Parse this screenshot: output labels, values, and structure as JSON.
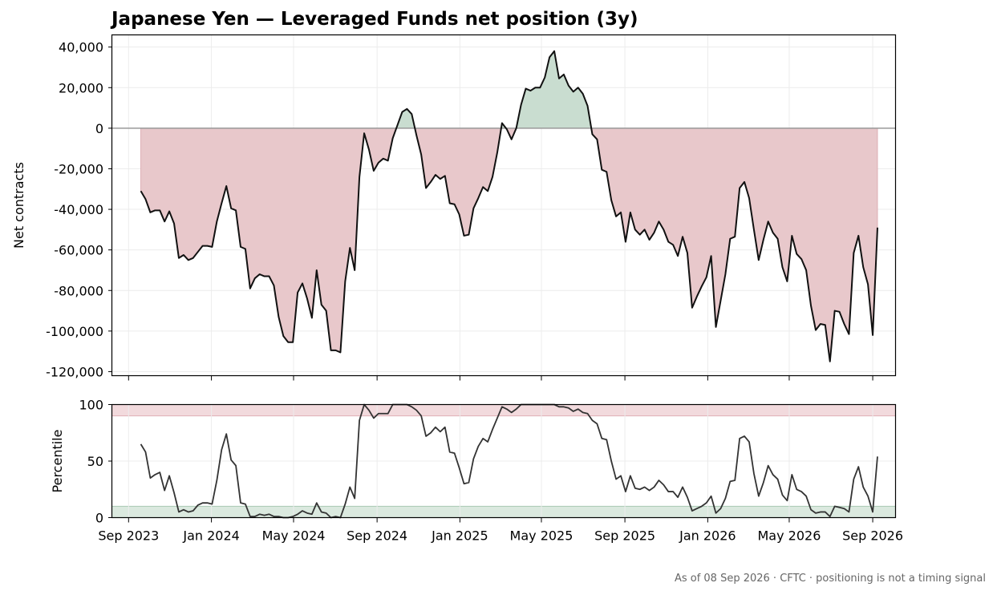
{
  "footer": "As of 08 Sep 2026 · CFTC · positioning is not a timing signal",
  "chart_data": [
    {
      "type": "area",
      "title": "Japanese Yen — Leveraged Funds net position (3y)",
      "xlabel": "",
      "ylabel": "Net contracts",
      "ylim": [
        -122000,
        46000
      ],
      "yticks": [
        40000,
        20000,
        0,
        -20000,
        -40000,
        -60000,
        -80000,
        -100000,
        -120000
      ],
      "ytick_labels": [
        "40,000",
        "20,000",
        "0",
        "-20,000",
        "-40,000",
        "-60,000",
        "-80,000",
        "-100,000",
        "-120,000"
      ],
      "grid": true,
      "fill_colors": {
        "negative": "#e8c8cb",
        "positive": "#c9ddd0"
      },
      "line_color": "#111111",
      "start_date": "2023-09-19",
      "frequency": "weekly",
      "values": [
        -31000,
        -35000,
        -41500,
        -40500,
        -40500,
        -46000,
        -41000,
        -47000,
        -64000,
        -62500,
        -65000,
        -64000,
        -61000,
        -58000,
        -58000,
        -58500,
        -46000,
        -37000,
        -28500,
        -39500,
        -40500,
        -58500,
        -59500,
        -79000,
        -74000,
        -72000,
        -73000,
        -73000,
        -77500,
        -93000,
        -102500,
        -105500,
        -105500,
        -81000,
        -76500,
        -84000,
        -93500,
        -70000,
        -87000,
        -90000,
        -109500,
        -109500,
        -110500,
        -75500,
        -59000,
        -70000,
        -24000,
        -2500,
        -10500,
        -21000,
        -17000,
        -15000,
        -16000,
        -5000,
        1500,
        8000,
        9500,
        7000,
        -3500,
        -13000,
        -29500,
        -26500,
        -23000,
        -25000,
        -23500,
        -37000,
        -37500,
        -42500,
        -53000,
        -52500,
        -39500,
        -34500,
        -29000,
        -31000,
        -24000,
        -12000,
        2500,
        -500,
        -5500,
        0,
        11500,
        19500,
        18500,
        20000,
        20000,
        25000,
        35000,
        38000,
        24500,
        26500,
        21000,
        18000,
        20000,
        17000,
        11000,
        -3000,
        -5500,
        -20500,
        -21500,
        -35500,
        -43500,
        -41500,
        -56000,
        -41500,
        -50000,
        -52500,
        -50000,
        -55000,
        -51500,
        -46000,
        -50000,
        -56000,
        -57500,
        -63000,
        -53500,
        -61500,
        -88500,
        -83000,
        -78000,
        -73500,
        -63000,
        -98000,
        -85000,
        -72000,
        -54500,
        -53500,
        -29500,
        -26500,
        -34500,
        -50000,
        -65000,
        -55000,
        -46000,
        -51500,
        -54500,
        -68500,
        -75500,
        -53000,
        -62000,
        -64500,
        -70000,
        -87500,
        -99500,
        -96500,
        -97000,
        -115000,
        -90000,
        -90500,
        -96500,
        -101500,
        -61500,
        -53000,
        -68500,
        -77000,
        -102000,
        -49000
      ]
    },
    {
      "type": "line",
      "title": "",
      "xlabel": "",
      "ylabel": "Percentile",
      "ylim": [
        0,
        100
      ],
      "yticks": [
        100,
        50,
        0
      ],
      "ytick_labels": [
        "100",
        "50",
        "0"
      ],
      "bands": [
        {
          "from": 90,
          "to": 100,
          "color": "#f2dadd"
        },
        {
          "from": 0,
          "to": 10,
          "color": "#dbe9df"
        }
      ],
      "line_color": "#333333",
      "start_date": "2023-09-19",
      "frequency": "weekly",
      "values": [
        65,
        58,
        35,
        38,
        40,
        24,
        37,
        22,
        5,
        7,
        5,
        6,
        11,
        13,
        13,
        12,
        33,
        60,
        74,
        51,
        46,
        13,
        12,
        1,
        1,
        3,
        2,
        3,
        1,
        1,
        0,
        0,
        1,
        3,
        6,
        4,
        3,
        13,
        5,
        4,
        0,
        1,
        0,
        12,
        27,
        17,
        86,
        100,
        95,
        88,
        92,
        92,
        92,
        100,
        100,
        100,
        100,
        98,
        95,
        90,
        72,
        75,
        80,
        76,
        80,
        58,
        57,
        44,
        30,
        31,
        52,
        63,
        70,
        67,
        78,
        88,
        98,
        96,
        93,
        96,
        100,
        100,
        100,
        100,
        100,
        100,
        100,
        100,
        98,
        98,
        97,
        94,
        96,
        93,
        92,
        86,
        83,
        70,
        69,
        50,
        34,
        37,
        23,
        37,
        26,
        25,
        27,
        24,
        27,
        33,
        29,
        23,
        23,
        18,
        27,
        18,
        6,
        8,
        10,
        13,
        19,
        4,
        8,
        17,
        32,
        33,
        70,
        72,
        67,
        39,
        19,
        31,
        46,
        38,
        34,
        20,
        15,
        38,
        25,
        23,
        19,
        7,
        4,
        5,
        5,
        1,
        10,
        9,
        8,
        5,
        34,
        45,
        27,
        19,
        5,
        54
      ],
      "xtick_labels": [
        "Sep 2023",
        "Jan 2024",
        "May 2024",
        "Sep 2024",
        "Jan 2025",
        "May 2025",
        "Sep 2025",
        "Jan 2026",
        "May 2026",
        "Sep 2026"
      ],
      "xtick_dates": [
        "2023-09-01",
        "2024-01-01",
        "2024-05-01",
        "2024-09-01",
        "2025-01-01",
        "2025-05-01",
        "2025-09-01",
        "2026-01-01",
        "2026-05-01",
        "2026-09-01"
      ]
    }
  ]
}
